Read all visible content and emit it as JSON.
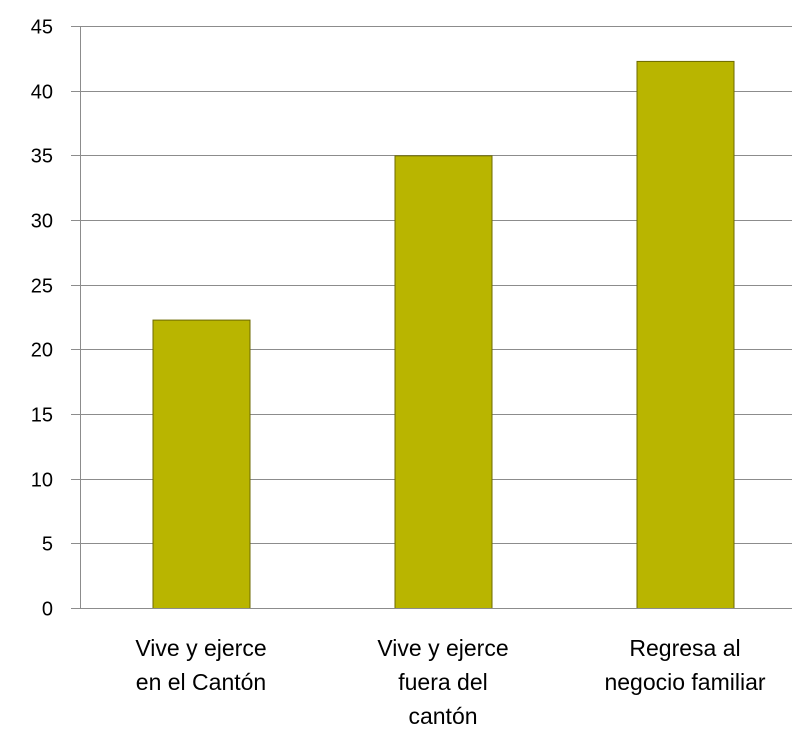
{
  "chart_data": {
    "type": "bar",
    "categories": [
      [
        "Vive y ejerce",
        "en el Cantón"
      ],
      [
        "Vive y ejerce",
        "fuera del",
        "cantón"
      ],
      [
        "Regresa al",
        "negocio familiar"
      ]
    ],
    "values": [
      22.3,
      35,
      42.3
    ],
    "ylim": [
      0,
      45
    ],
    "yticks": [
      "0",
      "5",
      "10",
      "15",
      "20",
      "25",
      "30",
      "35",
      "40",
      "45"
    ],
    "grid": true,
    "legend": "none",
    "colors": {
      "bar_fill": "#b9b500",
      "bar_stroke": "#6d6a00",
      "grid": "#8c8c8c",
      "axis": "#8c8c8c"
    }
  }
}
